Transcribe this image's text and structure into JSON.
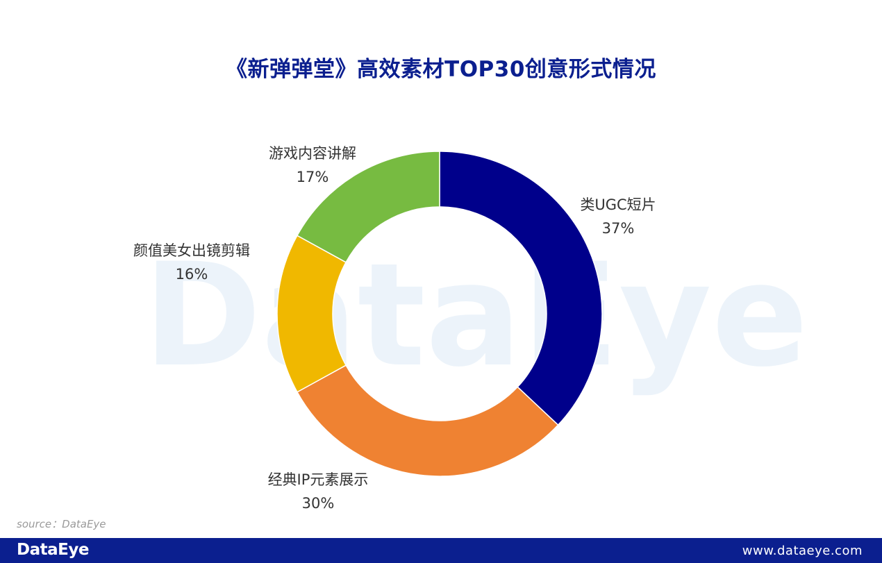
{
  "title": "《新弹弹堂》高效素材TOP30创意形式情况",
  "watermark_text": "DataEye",
  "source": "source：DataEye",
  "footer": {
    "logo": "DataEye",
    "url": "www.dataeye.com"
  },
  "colors": {
    "title": "#0b1f8f",
    "footer_bg": "#0b1f8f"
  },
  "chart_data": {
    "type": "pie",
    "donut": true,
    "start": "top",
    "direction": "clockwise",
    "slices": [
      {
        "name": "类UGC短片",
        "value": 37,
        "pct_label": "37%",
        "color": "#00008b"
      },
      {
        "name": "经典IP元素展示",
        "value": 30,
        "pct_label": "30%",
        "color": "#ef8232"
      },
      {
        "name": "颜值美女出镜剪辑",
        "value": 16,
        "pct_label": "16%",
        "color": "#f0b800"
      },
      {
        "name": "游戏内容讲解",
        "value": 17,
        "pct_label": "17%",
        "color": "#77bb41"
      }
    ]
  }
}
